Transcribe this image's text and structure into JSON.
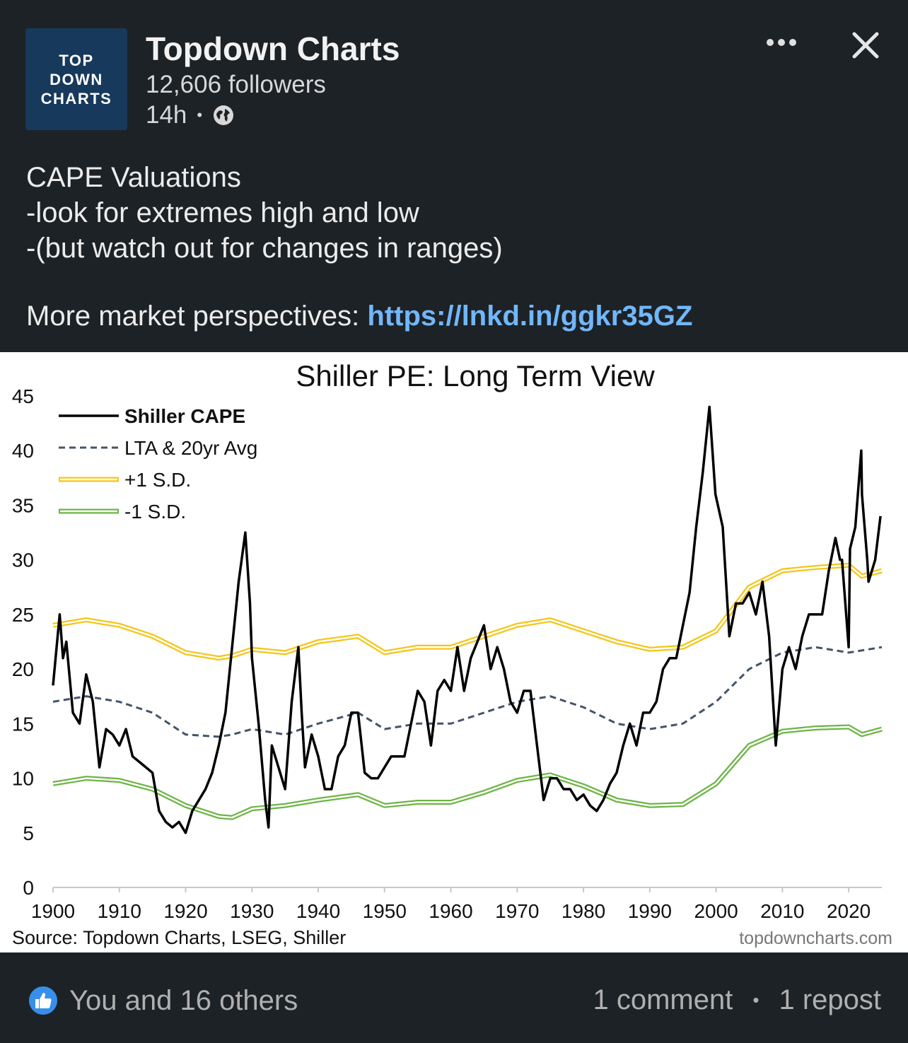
{
  "post": {
    "logo_lines": [
      "TOP",
      "DOWN",
      "CHARTS"
    ],
    "company": "Topdown Charts",
    "followers": "12,606 followers",
    "time": "14h",
    "text_lines": [
      "CAPE Valuations",
      "-look for extremes high and low",
      "-(but watch out for changes in ranges)"
    ],
    "link_prefix": "More market perspectives: ",
    "link": "https://lnkd.in/ggkr35GZ",
    "icons": {
      "more": "more-dots-icon",
      "close": "close-icon",
      "visibility": "globe-icon",
      "reaction": "like-icon"
    }
  },
  "footer": {
    "reactions": "You and 16 others",
    "comments": "1 comment",
    "reposts": "1 repost"
  },
  "chart_data": {
    "type": "line",
    "title": "Shiller PE: Long Term View",
    "source": "Source: Topdown Charts, LSEG, Shiller",
    "watermark": "topdowncharts.com",
    "xlim": [
      1900,
      2025
    ],
    "ylim": [
      0,
      45
    ],
    "xticks": [
      1900,
      1910,
      1920,
      1930,
      1940,
      1950,
      1960,
      1970,
      1980,
      1990,
      2000,
      2010,
      2020
    ],
    "yticks": [
      0,
      5,
      10,
      15,
      20,
      25,
      30,
      35,
      40,
      45
    ],
    "legend_position": "top-left",
    "colors": {
      "cape": "#000000",
      "avg": "#44546a",
      "plus_sd": "#f5c518",
      "minus_sd": "#6cb545"
    },
    "series": [
      {
        "name": "Shiller CAPE",
        "style": "solid",
        "x": [
          1900,
          1901,
          1901.5,
          1902,
          1903,
          1904,
          1905,
          1906,
          1907,
          1908,
          1909,
          1910,
          1911,
          1912,
          1913,
          1914,
          1915,
          1916,
          1917,
          1918,
          1919,
          1920,
          1921,
          1922,
          1923,
          1924,
          1925,
          1926,
          1927,
          1928,
          1929,
          1929.7,
          1930,
          1931,
          1932,
          1932.5,
          1933,
          1934,
          1935,
          1936,
          1937,
          1937.5,
          1938,
          1939,
          1940,
          1941,
          1942,
          1943,
          1944,
          1945,
          1946,
          1947,
          1948,
          1949,
          1950,
          1951,
          1952,
          1953,
          1954,
          1955,
          1956,
          1957,
          1958,
          1959,
          1960,
          1961,
          1962,
          1963,
          1964,
          1965,
          1966,
          1967,
          1968,
          1969,
          1970,
          1971,
          1972,
          1973,
          1974,
          1975,
          1976,
          1977,
          1978,
          1979,
          1980,
          1981,
          1982,
          1983,
          1984,
          1985,
          1986,
          1987,
          1988,
          1989,
          1990,
          1991,
          1992,
          1993,
          1994,
          1995,
          1996,
          1997,
          1998,
          1999,
          1999.9,
          2001,
          2002,
          2003,
          2004,
          2005,
          2006,
          2007,
          2008,
          2009,
          2010,
          2011,
          2012,
          2013,
          2014,
          2015,
          2016,
          2017,
          2018,
          2018.7,
          2019,
          2020,
          2020.2,
          2021,
          2021.9,
          2022,
          2022.8,
          2023,
          2024,
          2024.8
        ],
        "y": [
          18.5,
          25,
          21,
          22.5,
          16,
          15,
          19.5,
          17,
          11,
          14.5,
          14,
          13,
          14.5,
          12,
          11.5,
          11,
          10.5,
          7,
          6,
          5.5,
          6,
          5,
          7,
          8,
          9,
          10.5,
          13,
          16,
          22,
          28,
          32.5,
          26,
          21,
          15,
          8,
          5.5,
          13,
          11,
          9,
          17,
          22,
          16,
          11,
          14,
          12,
          9,
          9,
          12,
          13,
          16,
          16,
          10.5,
          10,
          10,
          11,
          12,
          12,
          12,
          15,
          18,
          17,
          13,
          18,
          19,
          18,
          22,
          18,
          21,
          22.5,
          24,
          20,
          22,
          20,
          17,
          16,
          18,
          18,
          13,
          8,
          10,
          10,
          9,
          9,
          8,
          8.5,
          7.5,
          7,
          8,
          9.5,
          10.5,
          13,
          15,
          13,
          16,
          16,
          17,
          20,
          21,
          21,
          24,
          27,
          33,
          38,
          44,
          36,
          33,
          23,
          26,
          26,
          27,
          25,
          28,
          23,
          13,
          20,
          22,
          20,
          23,
          25,
          25,
          25,
          29,
          32,
          30,
          30,
          22,
          31,
          33,
          40,
          36,
          30,
          28,
          30,
          34
        ]
      },
      {
        "name": "LTA & 20yr Avg",
        "style": "dashed",
        "x": [
          1900,
          1905,
          1910,
          1915,
          1920,
          1925,
          1927,
          1930,
          1935,
          1940,
          1946,
          1950,
          1955,
          1960,
          1965,
          1970,
          1975,
          1980,
          1985,
          1990,
          1995,
          2000,
          2005,
          2010,
          2015,
          2020,
          2025
        ],
        "y": [
          17,
          17.5,
          17,
          16,
          14,
          13.8,
          14,
          14.5,
          14,
          15,
          16,
          14.5,
          15,
          15,
          16,
          17,
          17.5,
          16.5,
          15,
          14.5,
          15,
          17,
          20,
          21.5,
          22,
          21.5,
          22
        ]
      },
      {
        "name": "+1 S.D.",
        "style": "solid",
        "x": [
          1900,
          1905,
          1910,
          1915,
          1920,
          1925,
          1927,
          1930,
          1935,
          1940,
          1946,
          1950,
          1955,
          1960,
          1965,
          1970,
          1975,
          1980,
          1985,
          1990,
          1995,
          2000,
          2005,
          2010,
          2015,
          2020,
          2022,
          2025
        ],
        "y": [
          24,
          24.5,
          24,
          23,
          21.5,
          21,
          21.2,
          21.8,
          21.5,
          22.5,
          23,
          21.5,
          22,
          22,
          23,
          24,
          24.5,
          23.5,
          22.5,
          21.8,
          22,
          23.5,
          27.5,
          29,
          29.3,
          29.5,
          28.5,
          29
        ]
      },
      {
        "name": "-1 S.D.",
        "style": "solid",
        "x": [
          1900,
          1905,
          1910,
          1915,
          1920,
          1925,
          1927,
          1930,
          1935,
          1940,
          1946,
          1950,
          1955,
          1960,
          1965,
          1970,
          1975,
          1980,
          1985,
          1990,
          1995,
          2000,
          2005,
          2010,
          2015,
          2020,
          2022,
          2025
        ],
        "y": [
          9.5,
          10,
          9.8,
          9,
          7.5,
          6.5,
          6.4,
          7.2,
          7.5,
          8,
          8.5,
          7.5,
          7.8,
          7.8,
          8.7,
          9.8,
          10.3,
          9.3,
          8,
          7.5,
          7.6,
          9.5,
          13,
          14.3,
          14.6,
          14.7,
          14,
          14.5
        ]
      }
    ]
  }
}
